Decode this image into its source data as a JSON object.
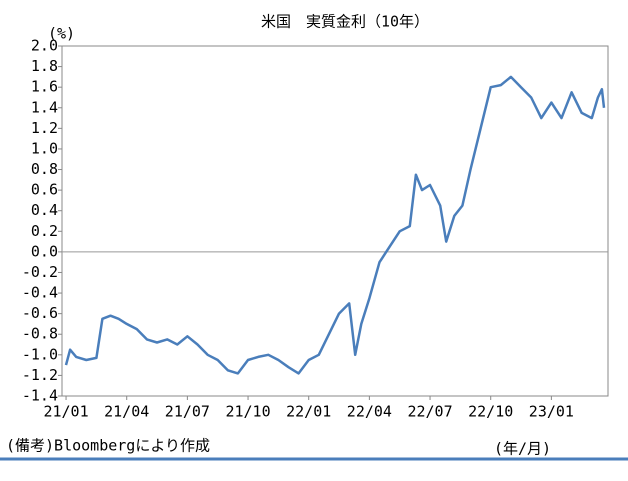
{
  "chart_data": {
    "type": "line",
    "title": "米国　実質金利（10年）",
    "y_unit": "(%)",
    "x_unit": "(年/月)",
    "note": "(備考)Bloombergにより作成",
    "x": [
      0,
      0.2,
      0.5,
      1,
      1.5,
      1.8,
      2.2,
      2.6,
      3,
      3.5,
      4,
      4.5,
      5,
      5.5,
      6,
      6.5,
      7,
      7.5,
      8,
      8.5,
      9,
      9.5,
      10,
      10.5,
      11,
      11.5,
      12,
      12.5,
      13,
      13.5,
      14,
      14.3,
      14.6,
      15,
      15.5,
      16,
      16.5,
      17,
      17.3,
      17.6,
      18,
      18.5,
      18.8,
      19.2,
      19.6,
      20,
      20.5,
      21,
      21.5,
      22,
      22.5,
      23,
      23.5,
      24,
      24.5,
      25,
      25.5,
      26,
      26.3,
      26.5,
      26.6
    ],
    "series": [
      {
        "name": "実質金利",
        "color": "#4a7ebb",
        "values": [
          -1.1,
          -0.95,
          -1.02,
          -1.05,
          -1.03,
          -0.65,
          -0.62,
          -0.65,
          -0.7,
          -0.75,
          -0.85,
          -0.88,
          -0.85,
          -0.9,
          -0.82,
          -0.9,
          -1.0,
          -1.05,
          -1.15,
          -1.18,
          -1.05,
          -1.02,
          -1.0,
          -1.05,
          -1.12,
          -1.18,
          -1.05,
          -1.0,
          -0.8,
          -0.6,
          -0.5,
          -1.0,
          -0.7,
          -0.45,
          -0.1,
          0.05,
          0.2,
          0.25,
          0.75,
          0.6,
          0.65,
          0.45,
          0.1,
          0.35,
          0.45,
          0.8,
          1.2,
          1.6,
          1.62,
          1.7,
          1.6,
          1.5,
          1.3,
          1.45,
          1.3,
          1.55,
          1.35,
          1.3,
          1.5,
          1.58,
          1.4
        ]
      }
    ],
    "xlim": [
      -0.2,
      26.8
    ],
    "xticks": [
      {
        "value": 0,
        "label": "21/01"
      },
      {
        "value": 3,
        "label": "21/04"
      },
      {
        "value": 6,
        "label": "21/07"
      },
      {
        "value": 9,
        "label": "21/10"
      },
      {
        "value": 12,
        "label": "22/01"
      },
      {
        "value": 15,
        "label": "22/04"
      },
      {
        "value": 18,
        "label": "22/07"
      },
      {
        "value": 21,
        "label": "22/10"
      },
      {
        "value": 24,
        "label": "23/01"
      }
    ],
    "ylim": [
      -1.4,
      2.0
    ],
    "yticks": [
      -1.4,
      -1.2,
      {
        "value": -1,
        "label": "-1.0"
      },
      -0.8,
      -0.6,
      -0.4,
      -0.2,
      {
        "value": 0,
        "label": "0.0"
      },
      0.2,
      0.4,
      0.6,
      0.8,
      {
        "value": 1,
        "label": "1.0"
      },
      1.2,
      1.4,
      1.6,
      1.8,
      {
        "value": 2,
        "label": "2.0"
      }
    ]
  }
}
